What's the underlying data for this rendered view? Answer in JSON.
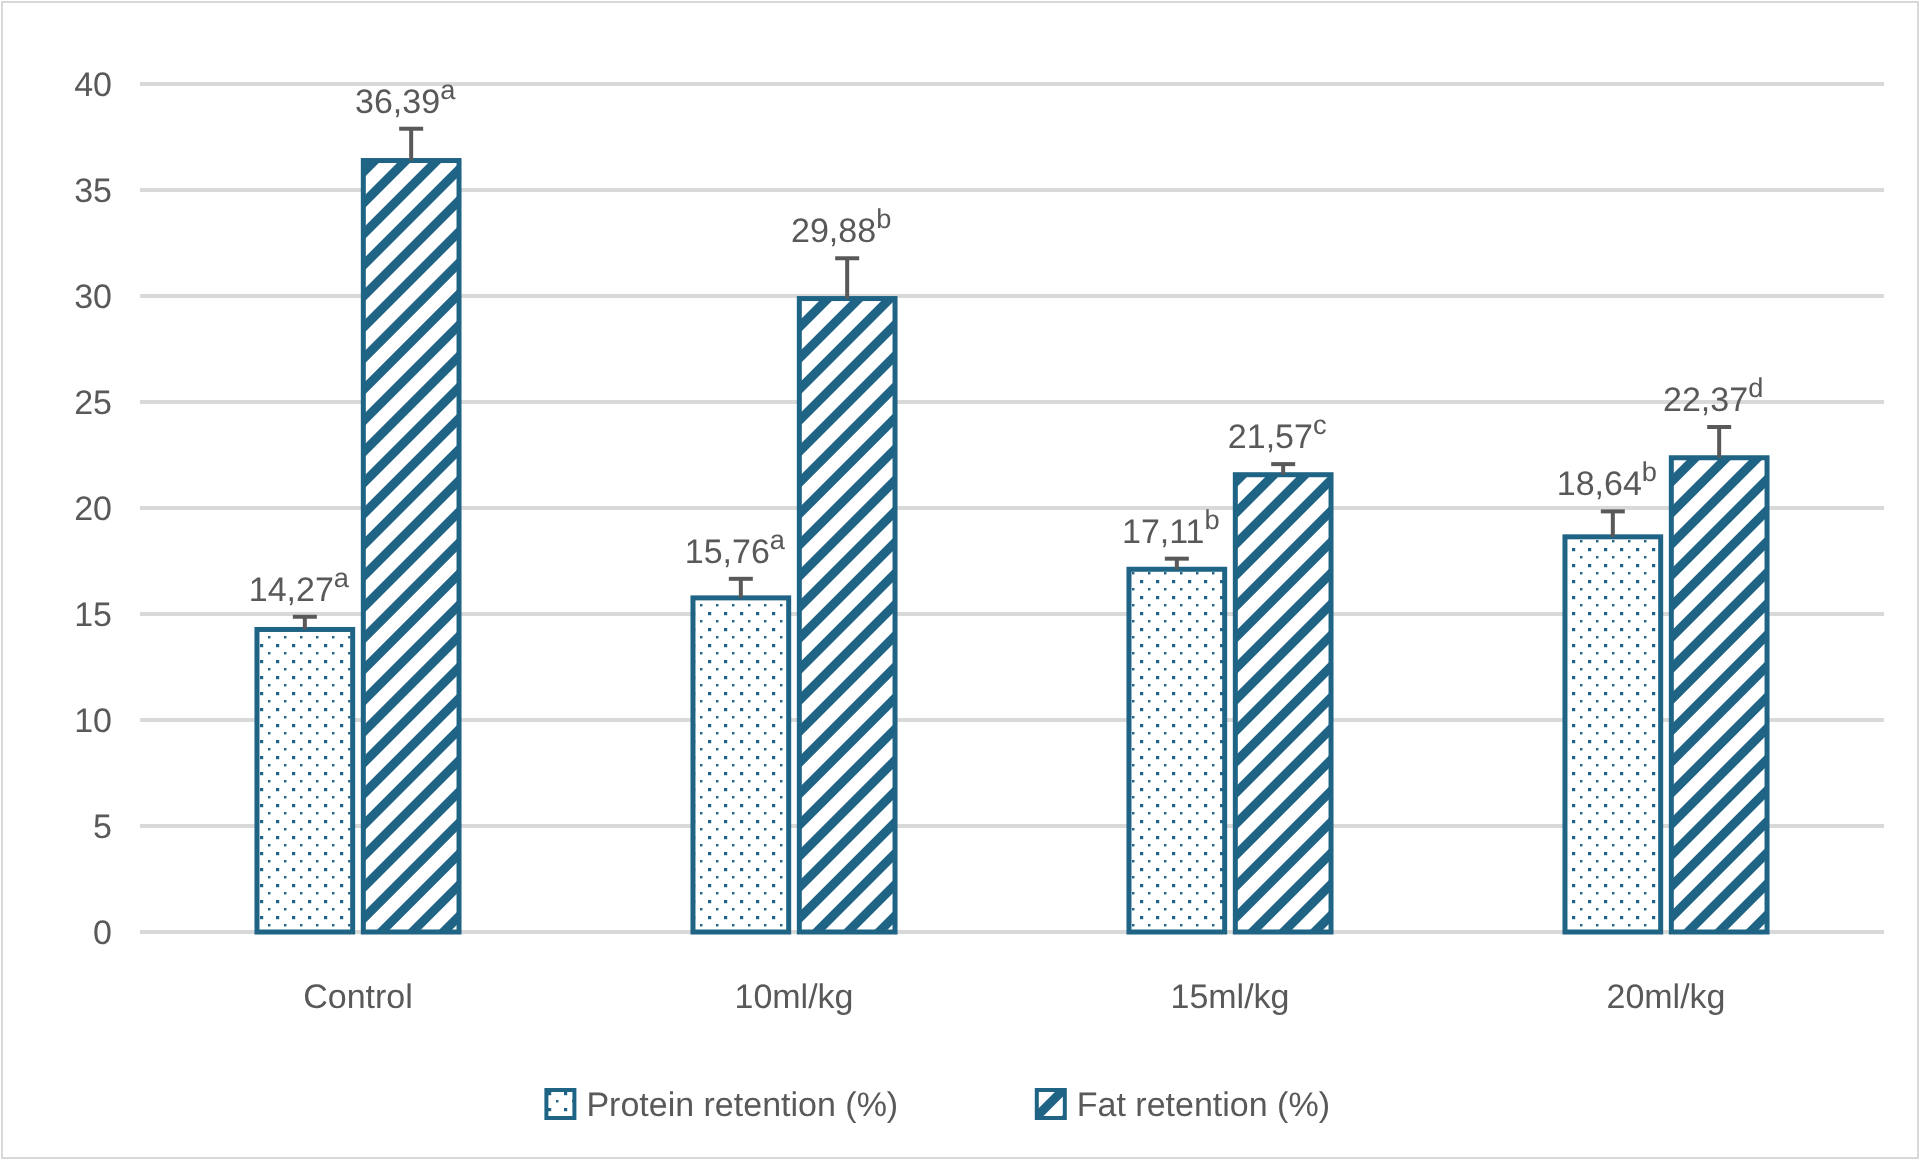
{
  "chart_data": {
    "type": "bar",
    "categories": [
      "Control",
      "10ml/kg",
      "15ml/kg",
      "20ml/kg"
    ],
    "series": [
      {
        "name": "Protein retention (%)",
        "color": "#1f6485",
        "values": [
          14.27,
          15.76,
          17.11,
          18.64
        ],
        "errors": [
          [
            14.27,
            14.87
          ],
          [
            15.76,
            16.66
          ],
          [
            17.11,
            17.61
          ],
          [
            18.64,
            19.84
          ]
        ],
        "value_labels": [
          "14,27$^{a}$",
          "15,76$^{a}$",
          "17,11$^{b}$",
          "18,64$^{b}$"
        ]
      },
      {
        "name": "Fat retention (%)",
        "color": "#1f6485",
        "values": [
          36.39,
          29.88,
          21.57,
          22.37
        ],
        "errors": [
          [
            36.39,
            37.89
          ],
          [
            29.88,
            31.78
          ],
          [
            21.57,
            22.07
          ],
          [
            22.37,
            23.82
          ]
        ],
        "value_labels": [
          "36,39$^{a}$",
          "29,88$^{b}$",
          "21,57$^{c}$",
          "22,37$^{d}$"
        ]
      }
    ],
    "ylim": [
      0,
      40
    ],
    "yticks": [
      0,
      5,
      10,
      15,
      20,
      25,
      30,
      35,
      40
    ],
    "grid": "y",
    "legend": "bottom"
  }
}
